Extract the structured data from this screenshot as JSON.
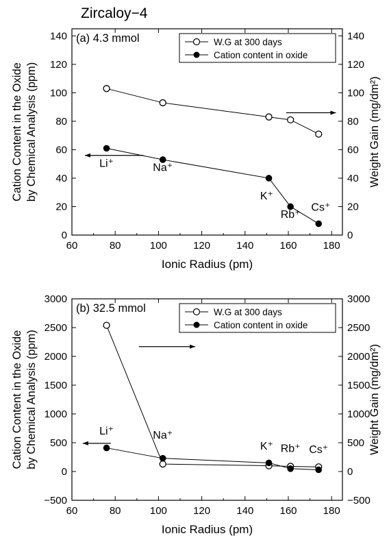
{
  "figure_title": "Zircaloy−4",
  "chart_data": [
    {
      "type": "line",
      "panel_label": "(a) 4.3 mmol",
      "xlabel": "Ionic Radius (pm)",
      "ylabel_left": [
        "Cation Content in the Oxide",
        "by Chemical Analysis (ppm)"
      ],
      "ylabel_right": "Weight Gain (mg/dm²)",
      "xlim": [
        60,
        185
      ],
      "xticks": [
        60,
        80,
        100,
        120,
        140,
        160,
        180
      ],
      "ylim_left": [
        0,
        145
      ],
      "yticks_left": [
        0,
        20,
        40,
        60,
        80,
        100,
        120,
        140
      ],
      "ylim_right": [
        0,
        145
      ],
      "yticks_right": [
        0,
        20,
        40,
        60,
        80,
        100,
        120,
        140
      ],
      "legend": {
        "position": "top-right",
        "entries": [
          "W.G at 300 days",
          "Cation content in oxide"
        ]
      },
      "series": [
        {
          "name": "W.G at 300 days",
          "axis": "right",
          "marker": "open-circle",
          "x": [
            76,
            102,
            151,
            161,
            174
          ],
          "y": [
            103,
            93,
            83,
            81,
            71
          ]
        },
        {
          "name": "Cation content in oxide",
          "axis": "left",
          "marker": "filled-circle",
          "x": [
            76,
            102,
            151,
            161,
            174
          ],
          "y": [
            61,
            53,
            40,
            20,
            8
          ]
        }
      ],
      "annotations": [
        {
          "text": "Li⁺",
          "x": 76,
          "y": 48
        },
        {
          "text": "Na⁺",
          "x": 102,
          "y": 45
        },
        {
          "text": "K⁺",
          "x": 150,
          "y": 25
        },
        {
          "text": "Rb⁺",
          "x": 161,
          "y": 12
        },
        {
          "text": "Cs⁺",
          "x": 175,
          "y": 17
        }
      ],
      "arrows": [
        {
          "direction": "left",
          "x_from": 93,
          "x_to": 66,
          "y": 56
        },
        {
          "direction": "right",
          "x_from": 159,
          "x_to": 182,
          "y": 86
        }
      ]
    },
    {
      "type": "line",
      "panel_label": "(b) 32.5 mmol",
      "xlabel": "Ionic Radius (pm)",
      "ylabel_left": [
        "Cation Content in the Oxide",
        "by Chemical Analysis (ppm)"
      ],
      "ylabel_right": "Weight Gain (mg/dm²)",
      "xlim": [
        60,
        185
      ],
      "xticks": [
        60,
        80,
        100,
        120,
        140,
        160,
        180
      ],
      "ylim_left": [
        -500,
        3000
      ],
      "yticks_left": [
        -500,
        0,
        500,
        1000,
        1500,
        2000,
        2500,
        3000
      ],
      "ylim_right": [
        -500,
        3000
      ],
      "yticks_right": [
        -500,
        0,
        500,
        1000,
        1500,
        2000,
        2500,
        3000
      ],
      "legend": {
        "position": "top-right",
        "entries": [
          "W.G at 300 days",
          "Cation content in oxide"
        ]
      },
      "series": [
        {
          "name": "W.G at 300 days",
          "axis": "right",
          "marker": "open-circle",
          "x": [
            76,
            102,
            151,
            161,
            174
          ],
          "y": [
            2540,
            130,
            100,
            90,
            80
          ]
        },
        {
          "name": "Cation content in oxide",
          "axis": "left",
          "marker": "filled-circle",
          "x": [
            76,
            102,
            151,
            161,
            174
          ],
          "y": [
            410,
            230,
            150,
            50,
            30
          ]
        }
      ],
      "annotations": [
        {
          "text": "Li⁺",
          "x": 76,
          "y": 640
        },
        {
          "text": "Na⁺",
          "x": 102,
          "y": 570
        },
        {
          "text": "K⁺",
          "x": 150,
          "y": 380
        },
        {
          "text": "Rb⁺",
          "x": 161,
          "y": 340
        },
        {
          "text": "Cs⁺",
          "x": 174,
          "y": 320
        }
      ],
      "arrows": [
        {
          "direction": "left",
          "x_from": 78,
          "x_to": 65,
          "y": 490
        },
        {
          "direction": "right",
          "x_from": 91,
          "x_to": 117,
          "y": 2170
        }
      ]
    }
  ]
}
